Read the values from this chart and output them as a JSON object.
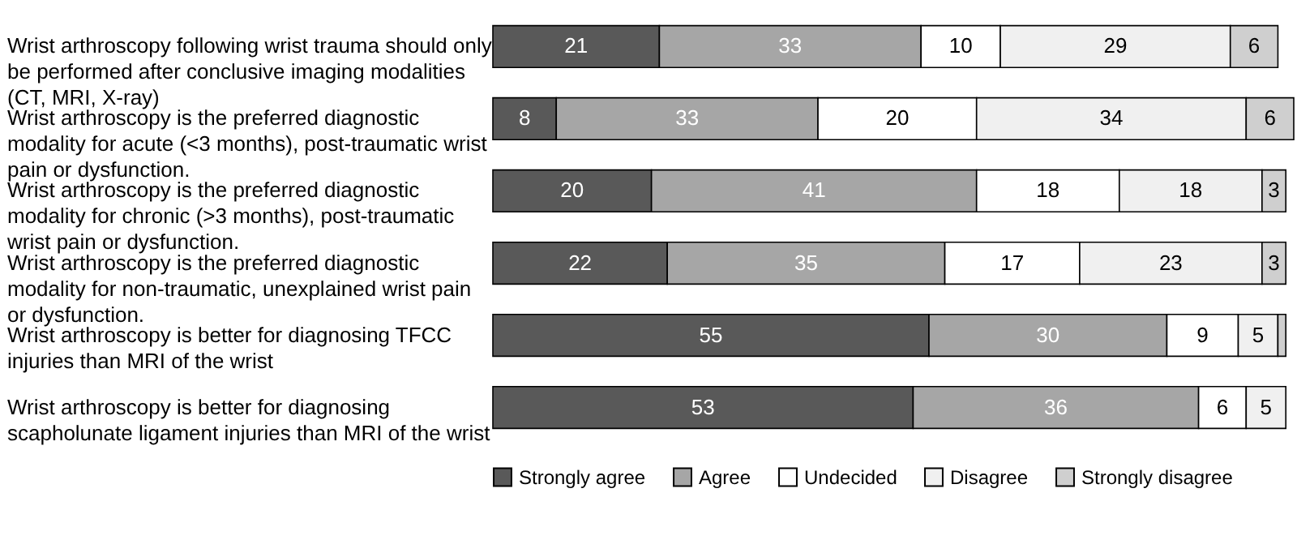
{
  "chart_data": {
    "type": "bar",
    "orientation": "horizontal",
    "stacked": true,
    "legend": "bottom right",
    "categories": [
      "Wrist arthroscopy following wrist trauma should only be performed after conclusive imaging modalities (CT, MRI, X-ray)",
      "Wrist arthroscopy is the preferred diagnostic modality for acute (<3 months), post-traumatic wrist pain or dysfunction.",
      "Wrist arthroscopy is the preferred diagnostic modality for chronic (>3 months), post-traumatic wrist pain or dysfunction.",
      "Wrist arthroscopy is the preferred diagnostic modality for non-traumatic, unexplained wrist pain or dysfunction.",
      "Wrist arthroscopy is better for diagnosing TFCC injuries than MRI of the wrist",
      "Wrist arthroscopy is better for diagnosing scapholunate ligament injuries than MRI of the wrist"
    ],
    "series": [
      {
        "name": "Strongly agree",
        "color": "#595959",
        "values": [
          21,
          8,
          20,
          22,
          55,
          53
        ],
        "value_labels": [
          "21",
          "8",
          "20",
          "22",
          "55",
          "53"
        ]
      },
      {
        "name": "Agree",
        "color": "#a6a6a6",
        "values": [
          33,
          33,
          41,
          35,
          30,
          36
        ],
        "value_labels": [
          "33",
          "33",
          "41",
          "35",
          "30",
          "36"
        ]
      },
      {
        "name": "Undecided",
        "color": "#ffffff",
        "values": [
          10,
          20,
          18,
          17,
          9,
          6
        ],
        "value_labels": [
          "10",
          "20",
          "18",
          "17",
          "9",
          "6"
        ]
      },
      {
        "name": "Disagree",
        "color": "#f0f0f0",
        "values": [
          29,
          34,
          18,
          23,
          5,
          5
        ],
        "value_labels": [
          "29",
          "34",
          "18",
          "23",
          "5",
          "5"
        ]
      },
      {
        "name": "Strongly disagree",
        "color": "#cfcfcf",
        "values": [
          6,
          6,
          3,
          3,
          1,
          null
        ],
        "value_labels": [
          "6",
          "6",
          "3",
          "3",
          null,
          null
        ]
      }
    ]
  }
}
